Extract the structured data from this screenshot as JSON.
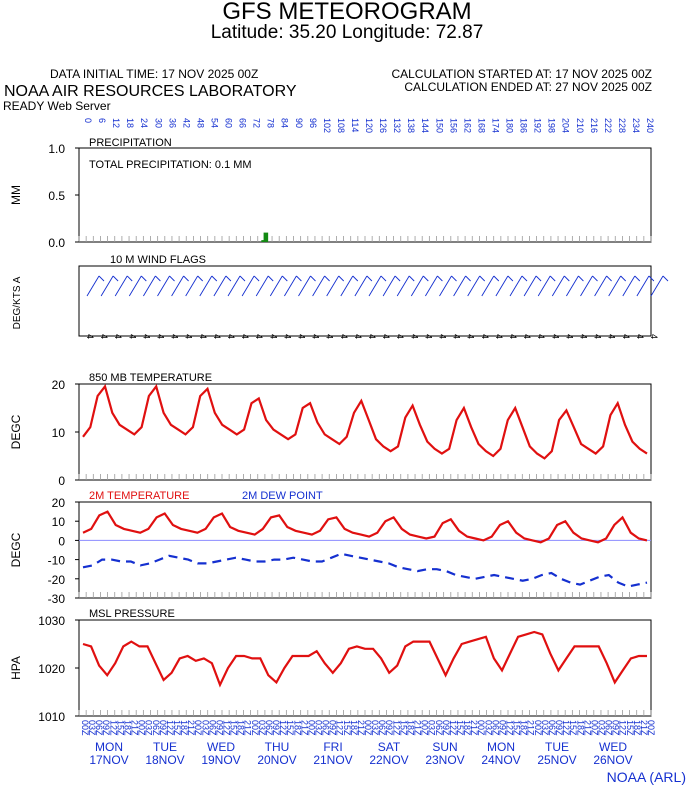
{
  "header": {
    "title": "GFS METEOROGRAM",
    "subtitle": "Latitude: 35.20 Longitude:  72.87",
    "init_time": "DATA INITIAL TIME: 17 NOV 2025 00Z",
    "calc_start": "CALCULATION STARTED AT: 17 NOV 2025 00Z",
    "calc_end": "CALCULATION ENDED AT: 27 NOV 2025 00Z",
    "lab": "NOAA AIR RESOURCES LABORATORY",
    "server": "READY Web Server",
    "credit": "NOAA (ARL)"
  },
  "colors": {
    "red": "#e01010",
    "blue": "#1530d0",
    "green": "#138a13",
    "zero_line": "#8c8cff"
  },
  "time_axis": {
    "hour_tick_labels": [
      "00",
      "03",
      "06",
      "09",
      "12",
      "15",
      "18",
      "21"
    ],
    "days": [
      {
        "dow": "MON",
        "date": "17NOV"
      },
      {
        "dow": "TUE",
        "date": "18NOV"
      },
      {
        "dow": "WED",
        "date": "19NOV"
      },
      {
        "dow": "THU",
        "date": "20NOV"
      },
      {
        "dow": "FRI",
        "date": "21NOV"
      },
      {
        "dow": "SAT",
        "date": "22NOV"
      },
      {
        "dow": "SUN",
        "date": "23NOV"
      },
      {
        "dow": "MON",
        "date": "24NOV"
      },
      {
        "dow": "TUE",
        "date": "25NOV"
      },
      {
        "dow": "WED",
        "date": "26NOV"
      }
    ],
    "hours_per_step": 6
  },
  "top_forecast_hours": [
    "0",
    "6",
    "12",
    "18",
    "24",
    "30",
    "36",
    "42",
    "48",
    "54",
    "60",
    "66",
    "72",
    "78",
    "84",
    "90",
    "96",
    "102",
    "108",
    "114",
    "120",
    "126",
    "132",
    "138",
    "144",
    "150",
    "156",
    "162",
    "168",
    "174",
    "180",
    "186",
    "192",
    "198",
    "204",
    "210",
    "216",
    "222",
    "228",
    "234",
    "240"
  ],
  "wind_direction_labels": [
    "4",
    "4",
    "4",
    "4",
    "4",
    "4",
    "4",
    "4",
    "4",
    "4",
    "4",
    "4",
    "4",
    "4",
    "4",
    "4",
    "4",
    "4",
    "4",
    "4",
    "4",
    "4",
    "4",
    "4",
    "4",
    "4",
    "4",
    "4",
    "4",
    "4",
    "4",
    "4",
    "4",
    "4",
    "4",
    "4",
    "4",
    "4",
    "4",
    "4",
    "4"
  ],
  "chart_data": [
    {
      "type": "bar",
      "panel": "PRECIPITATION",
      "annotation": "TOTAL PRECIPITATION:   0.1 MM",
      "ylabel": "MM",
      "ylim": [
        0,
        1
      ],
      "yticks": [
        "0.0",
        "0.5",
        "1.0"
      ],
      "series": [
        {
          "color": "#138a13",
          "values": [
            0,
            0,
            0,
            0,
            0,
            0,
            0,
            0,
            0,
            0,
            0,
            0,
            0,
            0,
            0,
            0,
            0,
            0,
            0,
            0,
            0,
            0,
            0,
            0,
            0,
            0,
            0,
            0,
            0,
            0,
            0,
            0,
            0,
            0,
            0,
            0,
            0,
            0,
            0,
            0,
            0,
            0,
            0,
            0,
            0,
            0,
            0,
            0,
            0,
            0,
            0,
            0,
            0,
            0,
            0,
            0,
            0,
            0,
            0,
            0,
            0,
            0,
            0,
            0,
            0,
            0,
            0,
            0,
            0,
            0,
            0,
            0,
            0,
            0,
            0,
            0,
            0,
            0,
            0,
            0,
            0.02,
            0.1,
            0,
            0,
            0,
            0,
            0,
            0,
            0,
            0,
            0,
            0,
            0,
            0,
            0,
            0,
            0,
            0,
            0,
            0,
            0,
            0,
            0,
            0,
            0,
            0,
            0,
            0,
            0,
            0,
            0,
            0,
            0,
            0,
            0,
            0,
            0,
            0,
            0,
            0,
            0,
            0,
            0,
            0,
            0,
            0,
            0,
            0,
            0,
            0,
            0,
            0,
            0,
            0,
            0,
            0,
            0,
            0,
            0,
            0,
            0,
            0,
            0,
            0,
            0,
            0,
            0,
            0,
            0,
            0,
            0,
            0,
            0,
            0,
            0,
            0,
            0,
            0,
            0,
            0,
            0,
            0,
            0,
            0,
            0,
            0,
            0,
            0,
            0,
            0,
            0,
            0,
            0,
            0,
            0,
            0,
            0,
            0,
            0,
            0,
            0,
            0,
            0,
            0,
            0,
            0,
            0,
            0,
            0,
            0,
            0,
            0,
            0,
            0,
            0,
            0,
            0,
            0,
            0,
            0,
            0,
            0,
            0,
            0,
            0,
            0,
            0,
            0,
            0,
            0,
            0,
            0,
            0,
            0,
            0,
            0,
            0,
            0,
            0,
            0,
            0,
            0,
            0,
            0,
            0,
            0,
            0,
            0,
            0,
            0,
            0,
            0,
            0,
            0,
            0,
            0,
            0,
            0,
            0,
            0,
            0,
            0,
            0,
            0,
            0,
            0,
            0,
            0,
            0,
            0,
            0
          ]
        }
      ]
    },
    {
      "type": "wind_barbs",
      "panel": "10 M  WIND FLAGS",
      "ylabel": "DEG/KTS  A"
    },
    {
      "type": "line",
      "panel": "850 MB  TEMPERATURE",
      "ylabel": "DEGC",
      "ylim": [
        0,
        20
      ],
      "yticks": [
        "0",
        "10",
        "20"
      ],
      "series": [
        {
          "color": "#e01010",
          "values": [
            9,
            11,
            17.5,
            19.5,
            14,
            11.5,
            10.5,
            9.5,
            11,
            17.5,
            19.5,
            14,
            11.5,
            10.5,
            9.5,
            11,
            17.5,
            19,
            14,
            11.5,
            10.5,
            9.5,
            10.5,
            16,
            17,
            12.5,
            10.5,
            9.5,
            8.5,
            9.5,
            15,
            16,
            12,
            9.5,
            8.5,
            7.5,
            9,
            14,
            16.5,
            12.5,
            8.5,
            7,
            6,
            7,
            13,
            15.5,
            11.5,
            8,
            6.5,
            5.5,
            6.5,
            12.5,
            15,
            11,
            7.5,
            6,
            5,
            6.5,
            12.5,
            15,
            11,
            7,
            5.5,
            4.5,
            6,
            12.5,
            14.5,
            11,
            7.5,
            6.5,
            5.5,
            7,
            13.5,
            16,
            11.5,
            8,
            6.5,
            5.5
          ]
        }
      ]
    },
    {
      "type": "line",
      "panel": "2M",
      "ylabel": "DEGC",
      "ylim": [
        -30,
        20
      ],
      "yticks": [
        "20",
        "10",
        "0",
        "-10",
        "-20",
        "-30"
      ],
      "series": [
        {
          "name": "2M TEMPERATURE",
          "color": "#e01010",
          "values": [
            4,
            6,
            13,
            15,
            8,
            6,
            5,
            4,
            6,
            12,
            14,
            8,
            6,
            5,
            4,
            6,
            12,
            14,
            7,
            5,
            4,
            3,
            6,
            12,
            13,
            7,
            5,
            4,
            3,
            5,
            11,
            12,
            6,
            4,
            3,
            2,
            4,
            10,
            12,
            6,
            3,
            2,
            1,
            2,
            9,
            11,
            5,
            2,
            1,
            0,
            2,
            8,
            10,
            4,
            1,
            0,
            -1,
            1,
            8,
            10,
            4,
            1,
            0,
            -1,
            1,
            8,
            12,
            4,
            1,
            0
          ]
        },
        {
          "name": "2M  DEW POINT",
          "color": "#1530d0",
          "dashed": true,
          "values": [
            -14,
            -13,
            -10,
            -10,
            -11,
            -11,
            -13,
            -12,
            -10,
            -8,
            -9,
            -10,
            -12,
            -12,
            -11,
            -10,
            -9,
            -10,
            -11,
            -11,
            -10,
            -10,
            -9,
            -10,
            -11,
            -11,
            -9,
            -7,
            -8,
            -9,
            -10,
            -11,
            -12,
            -14,
            -15,
            -16,
            -15,
            -15,
            -16,
            -18,
            -19,
            -20,
            -19,
            -18,
            -19,
            -20,
            -21,
            -20,
            -18,
            -17,
            -20,
            -22,
            -23,
            -21,
            -19,
            -18,
            -22,
            -24,
            -23,
            -22
          ]
        }
      ]
    },
    {
      "type": "line",
      "panel": "MSL PRESSURE",
      "ylabel": "HPA",
      "ylim": [
        1010,
        1030
      ],
      "yticks": [
        "1030",
        "1020",
        "1010"
      ],
      "series": [
        {
          "color": "#e01010",
          "values": [
            1025,
            1024.5,
            1020.5,
            1018.5,
            1021,
            1024.5,
            1025.5,
            1024.5,
            1024.5,
            1021,
            1017.5,
            1019,
            1022,
            1022.5,
            1021.5,
            1022,
            1021,
            1016.5,
            1020,
            1022.5,
            1022.5,
            1022,
            1022,
            1018.5,
            1017,
            1020,
            1022.5,
            1022.5,
            1022.5,
            1023.5,
            1021,
            1019,
            1021,
            1024,
            1024.5,
            1024,
            1024,
            1022,
            1019,
            1020.5,
            1024.5,
            1025.5,
            1025.5,
            1025.5,
            1022,
            1018.5,
            1022,
            1025,
            1025.5,
            1026,
            1026.5,
            1022,
            1019.5,
            1023,
            1026.5,
            1027,
            1027.5,
            1027,
            1023,
            1019.5,
            1022,
            1024.5,
            1024.5,
            1024.5,
            1024.5,
            1021,
            1017,
            1019.5,
            1022,
            1022.5,
            1022.5
          ]
        }
      ]
    }
  ]
}
